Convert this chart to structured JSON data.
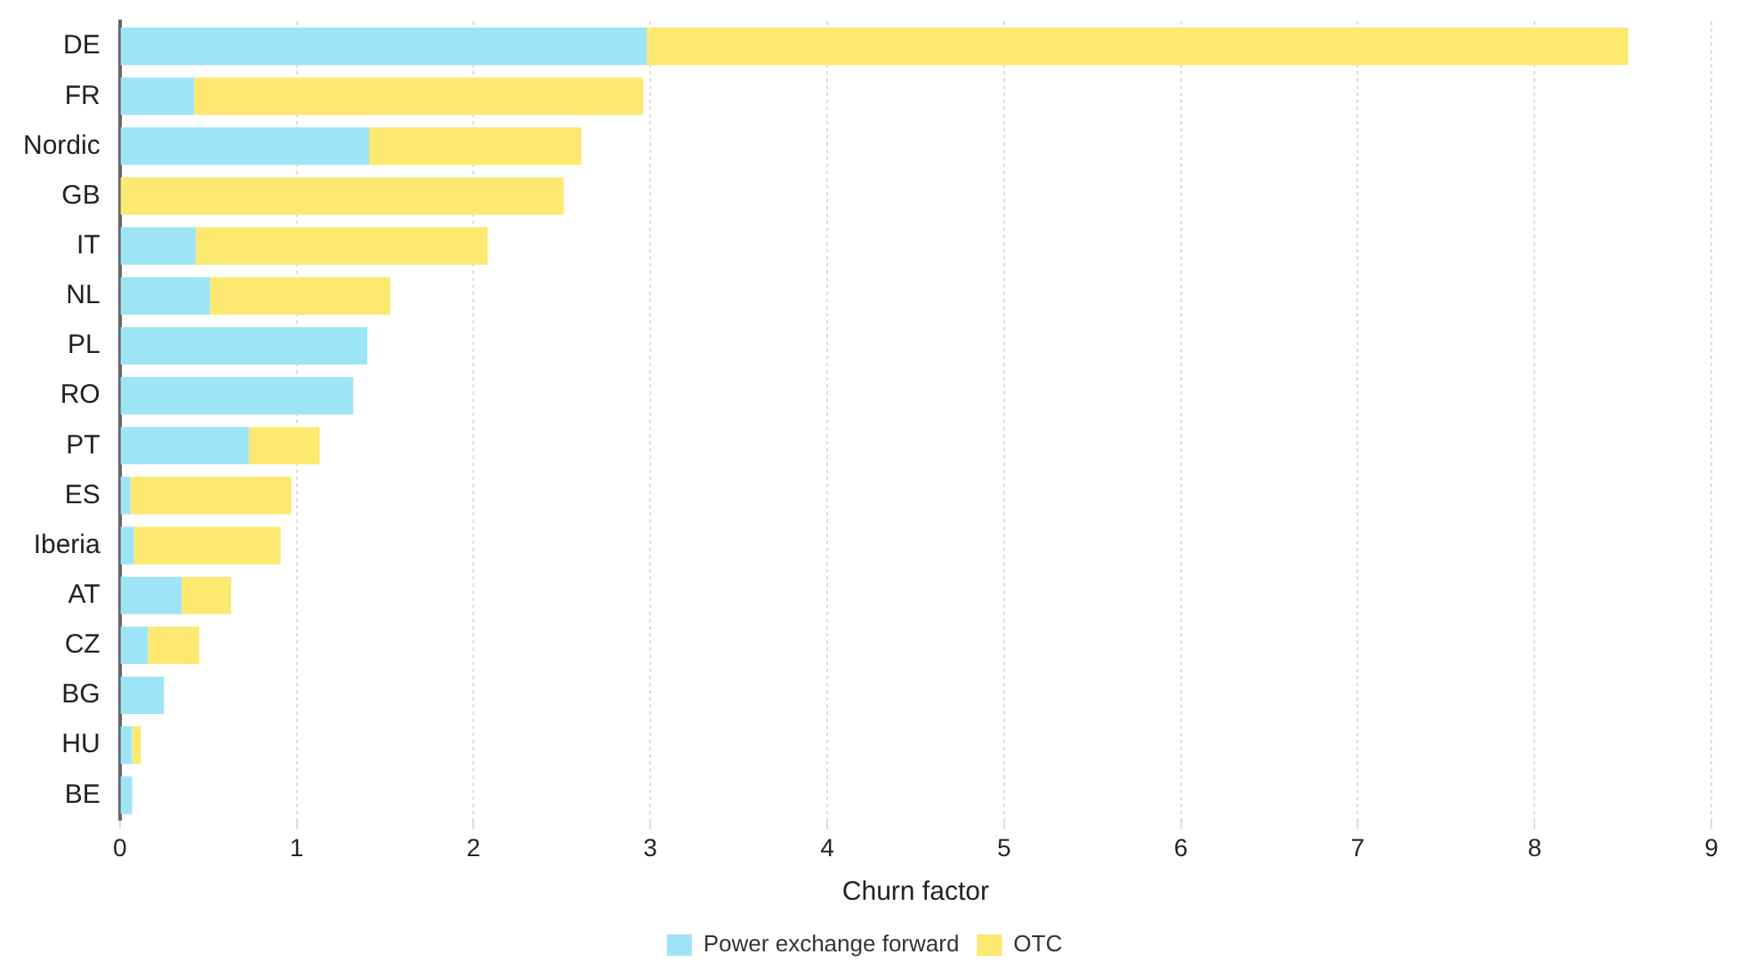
{
  "chart_data": {
    "type": "bar",
    "orientation": "horizontal",
    "stacked": true,
    "xlabel": "Churn factor",
    "categories": [
      "DE",
      "FR",
      "Nordic",
      "GB",
      "IT",
      "NL",
      "PL",
      "RO",
      "PT",
      "ES",
      "Iberia",
      "AT",
      "CZ",
      "BG",
      "HU",
      "BE"
    ],
    "series": [
      {
        "name": "Power exchange forward",
        "color": "#9ee4f7",
        "values": [
          2.98,
          0.42,
          1.41,
          0,
          0.43,
          0.51,
          1.4,
          1.32,
          0.73,
          0.06,
          0.08,
          0.35,
          0.16,
          0.25,
          0.07,
          0.07
        ]
      },
      {
        "name": "OTC",
        "color": "#fde870",
        "values": [
          5.55,
          2.54,
          1.2,
          2.51,
          1.65,
          1.02,
          0,
          0,
          0.4,
          0.91,
          0.83,
          0.28,
          0.29,
          0,
          0.05,
          0
        ]
      }
    ],
    "xlim": [
      0,
      9
    ],
    "xticks": [
      0,
      1,
      2,
      3,
      4,
      5,
      6,
      7,
      8,
      9
    ],
    "grid": "x",
    "legend": "bottom"
  }
}
